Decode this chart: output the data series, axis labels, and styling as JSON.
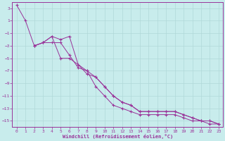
{
  "title": "",
  "xlabel": "Windchill (Refroidissement éolien,°C)",
  "ylabel": "",
  "bg_color": "#c8ecec",
  "line_color": "#993399",
  "grid_color": "#b0d8d8",
  "xlim": [
    -0.5,
    23.5
  ],
  "ylim": [
    -16,
    4
  ],
  "xticks": [
    0,
    1,
    2,
    3,
    4,
    5,
    6,
    7,
    8,
    9,
    10,
    11,
    12,
    13,
    14,
    15,
    16,
    17,
    18,
    19,
    20,
    21,
    22,
    23
  ],
  "yticks": [
    3,
    1,
    -1,
    -3,
    -5,
    -7,
    -9,
    -11,
    -13,
    -15
  ],
  "line1_x": [
    0,
    1,
    2,
    3,
    4,
    5,
    6,
    7,
    8,
    9,
    10,
    11,
    12,
    13,
    14,
    15,
    16,
    17,
    18,
    19,
    20,
    21,
    22,
    23
  ],
  "line1_y": [
    3.5,
    1,
    -3,
    -2.5,
    -1.5,
    -5,
    -5,
    -6,
    -7.5,
    -8,
    -9.5,
    -11,
    -12,
    -12.5,
    -13.5,
    -13.5,
    -13.5,
    -13.5,
    -13.5,
    -14,
    -14.5,
    -15,
    -15,
    -15.5
  ],
  "line2_x": [
    2,
    3,
    4,
    5,
    6,
    7,
    8,
    9,
    10,
    11,
    12,
    13,
    14,
    15,
    16,
    17,
    18,
    19,
    20,
    21,
    22,
    23
  ],
  "line2_y": [
    -3,
    -2.5,
    -1.5,
    -2,
    -1.5,
    -6,
    -7,
    -9.5,
    -11,
    -12.5,
    -13,
    -13.5,
    -14,
    -14,
    -14,
    -14,
    -14,
    -14.5,
    -15,
    -15,
    -15.5,
    -15.5
  ],
  "line3_x": [
    2,
    3,
    4,
    5,
    6,
    7,
    8,
    9,
    10,
    11,
    12,
    13,
    14,
    15,
    16,
    17,
    18,
    19,
    20,
    21,
    22,
    23
  ],
  "line3_y": [
    -3,
    -2.5,
    -2.5,
    -2.5,
    -4.5,
    -6.5,
    -7,
    -8,
    -9.5,
    -11,
    -12,
    -12.5,
    -13.5,
    -13.5,
    -13.5,
    -13.5,
    -13.5,
    -14,
    -14.5,
    -15,
    -15,
    -15.5
  ]
}
